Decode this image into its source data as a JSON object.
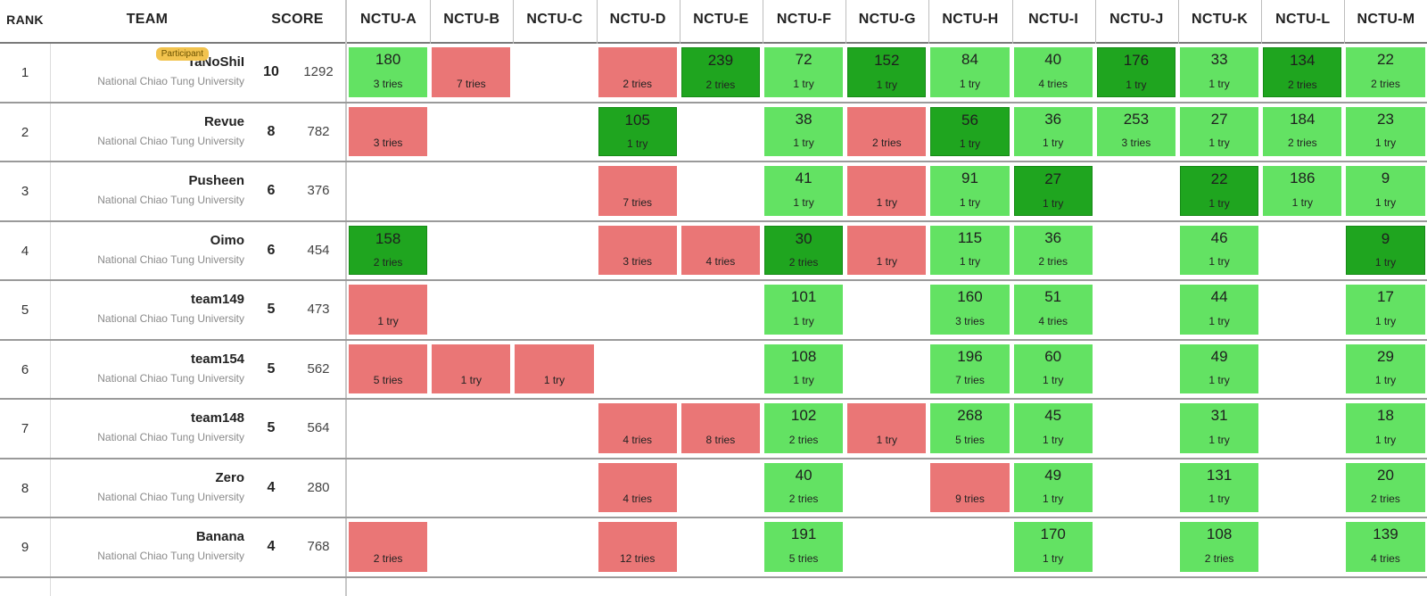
{
  "columns": {
    "rank": "RANK",
    "team": "TEAM",
    "score": "SCORE",
    "problems": [
      "NCTU-A",
      "NCTU-B",
      "NCTU-C",
      "NCTU-D",
      "NCTU-E",
      "NCTU-F",
      "NCTU-G",
      "NCTU-H",
      "NCTU-I",
      "NCTU-J",
      "NCTU-K",
      "NCTU-L",
      "NCTU-M"
    ]
  },
  "colors": {
    "solved": "#63e263",
    "first_solve": "#1fa51f",
    "failed": "#ea7676",
    "badge": "#f2c34e"
  },
  "rows": [
    {
      "rank": "1",
      "name": "TaNoShiI",
      "affiliation": "National Chiao Tung University",
      "badge": "Participant",
      "solved": "10",
      "penalty": "1292",
      "cells": [
        {
          "s": "solved",
          "time": "180",
          "tries": "3 tries"
        },
        {
          "s": "failed",
          "time": "",
          "tries": "7 tries"
        },
        {
          "s": "none",
          "time": "",
          "tries": ""
        },
        {
          "s": "failed",
          "time": "",
          "tries": "2 tries"
        },
        {
          "s": "first",
          "time": "239",
          "tries": "2 tries"
        },
        {
          "s": "solved",
          "time": "72",
          "tries": "1 try"
        },
        {
          "s": "first",
          "time": "152",
          "tries": "1 try"
        },
        {
          "s": "solved",
          "time": "84",
          "tries": "1 try"
        },
        {
          "s": "solved",
          "time": "40",
          "tries": "4 tries"
        },
        {
          "s": "first",
          "time": "176",
          "tries": "1 try"
        },
        {
          "s": "solved",
          "time": "33",
          "tries": "1 try"
        },
        {
          "s": "first",
          "time": "134",
          "tries": "2 tries"
        },
        {
          "s": "solved",
          "time": "22",
          "tries": "2 tries"
        }
      ]
    },
    {
      "rank": "2",
      "name": "Revue",
      "affiliation": "National Chiao Tung University",
      "badge": "",
      "solved": "8",
      "penalty": "782",
      "cells": [
        {
          "s": "failed",
          "time": "",
          "tries": "3 tries"
        },
        {
          "s": "none",
          "time": "",
          "tries": ""
        },
        {
          "s": "none",
          "time": "",
          "tries": ""
        },
        {
          "s": "first",
          "time": "105",
          "tries": "1 try"
        },
        {
          "s": "none",
          "time": "",
          "tries": ""
        },
        {
          "s": "solved",
          "time": "38",
          "tries": "1 try"
        },
        {
          "s": "failed",
          "time": "",
          "tries": "2 tries"
        },
        {
          "s": "first",
          "time": "56",
          "tries": "1 try"
        },
        {
          "s": "solved",
          "time": "36",
          "tries": "1 try"
        },
        {
          "s": "solved",
          "time": "253",
          "tries": "3 tries"
        },
        {
          "s": "solved",
          "time": "27",
          "tries": "1 try"
        },
        {
          "s": "solved",
          "time": "184",
          "tries": "2 tries"
        },
        {
          "s": "solved",
          "time": "23",
          "tries": "1 try"
        }
      ]
    },
    {
      "rank": "3",
      "name": "Pusheen",
      "affiliation": "National Chiao Tung University",
      "badge": "",
      "solved": "6",
      "penalty": "376",
      "cells": [
        {
          "s": "none",
          "time": "",
          "tries": ""
        },
        {
          "s": "none",
          "time": "",
          "tries": ""
        },
        {
          "s": "none",
          "time": "",
          "tries": ""
        },
        {
          "s": "failed",
          "time": "",
          "tries": "7 tries"
        },
        {
          "s": "none",
          "time": "",
          "tries": ""
        },
        {
          "s": "solved",
          "time": "41",
          "tries": "1 try"
        },
        {
          "s": "failed",
          "time": "",
          "tries": "1 try"
        },
        {
          "s": "solved",
          "time": "91",
          "tries": "1 try"
        },
        {
          "s": "first",
          "time": "27",
          "tries": "1 try"
        },
        {
          "s": "none",
          "time": "",
          "tries": ""
        },
        {
          "s": "first",
          "time": "22",
          "tries": "1 try"
        },
        {
          "s": "solved",
          "time": "186",
          "tries": "1 try"
        },
        {
          "s": "solved",
          "time": "9",
          "tries": "1 try"
        }
      ]
    },
    {
      "rank": "4",
      "name": "Oimo",
      "affiliation": "National Chiao Tung University",
      "badge": "",
      "solved": "6",
      "penalty": "454",
      "cells": [
        {
          "s": "first",
          "time": "158",
          "tries": "2 tries"
        },
        {
          "s": "none",
          "time": "",
          "tries": ""
        },
        {
          "s": "none",
          "time": "",
          "tries": ""
        },
        {
          "s": "failed",
          "time": "",
          "tries": "3 tries"
        },
        {
          "s": "failed",
          "time": "",
          "tries": "4 tries"
        },
        {
          "s": "first",
          "time": "30",
          "tries": "2 tries"
        },
        {
          "s": "failed",
          "time": "",
          "tries": "1 try"
        },
        {
          "s": "solved",
          "time": "115",
          "tries": "1 try"
        },
        {
          "s": "solved",
          "time": "36",
          "tries": "2 tries"
        },
        {
          "s": "none",
          "time": "",
          "tries": ""
        },
        {
          "s": "solved",
          "time": "46",
          "tries": "1 try"
        },
        {
          "s": "none",
          "time": "",
          "tries": ""
        },
        {
          "s": "first",
          "time": "9",
          "tries": "1 try"
        }
      ]
    },
    {
      "rank": "5",
      "name": "team149",
      "affiliation": "National Chiao Tung University",
      "badge": "",
      "solved": "5",
      "penalty": "473",
      "cells": [
        {
          "s": "failed",
          "time": "",
          "tries": "1 try"
        },
        {
          "s": "none",
          "time": "",
          "tries": ""
        },
        {
          "s": "none",
          "time": "",
          "tries": ""
        },
        {
          "s": "none",
          "time": "",
          "tries": ""
        },
        {
          "s": "none",
          "time": "",
          "tries": ""
        },
        {
          "s": "solved",
          "time": "101",
          "tries": "1 try"
        },
        {
          "s": "none",
          "time": "",
          "tries": ""
        },
        {
          "s": "solved",
          "time": "160",
          "tries": "3 tries"
        },
        {
          "s": "solved",
          "time": "51",
          "tries": "4 tries"
        },
        {
          "s": "none",
          "time": "",
          "tries": ""
        },
        {
          "s": "solved",
          "time": "44",
          "tries": "1 try"
        },
        {
          "s": "none",
          "time": "",
          "tries": ""
        },
        {
          "s": "solved",
          "time": "17",
          "tries": "1 try"
        }
      ]
    },
    {
      "rank": "6",
      "name": "team154",
      "affiliation": "National Chiao Tung University",
      "badge": "",
      "solved": "5",
      "penalty": "562",
      "cells": [
        {
          "s": "failed",
          "time": "",
          "tries": "5 tries"
        },
        {
          "s": "failed",
          "time": "",
          "tries": "1 try"
        },
        {
          "s": "failed",
          "time": "",
          "tries": "1 try"
        },
        {
          "s": "none",
          "time": "",
          "tries": ""
        },
        {
          "s": "none",
          "time": "",
          "tries": ""
        },
        {
          "s": "solved",
          "time": "108",
          "tries": "1 try"
        },
        {
          "s": "none",
          "time": "",
          "tries": ""
        },
        {
          "s": "solved",
          "time": "196",
          "tries": "7 tries"
        },
        {
          "s": "solved",
          "time": "60",
          "tries": "1 try"
        },
        {
          "s": "none",
          "time": "",
          "tries": ""
        },
        {
          "s": "solved",
          "time": "49",
          "tries": "1 try"
        },
        {
          "s": "none",
          "time": "",
          "tries": ""
        },
        {
          "s": "solved",
          "time": "29",
          "tries": "1 try"
        }
      ]
    },
    {
      "rank": "7",
      "name": "team148",
      "affiliation": "National Chiao Tung University",
      "badge": "",
      "solved": "5",
      "penalty": "564",
      "cells": [
        {
          "s": "none",
          "time": "",
          "tries": ""
        },
        {
          "s": "none",
          "time": "",
          "tries": ""
        },
        {
          "s": "none",
          "time": "",
          "tries": ""
        },
        {
          "s": "failed",
          "time": "",
          "tries": "4 tries"
        },
        {
          "s": "failed",
          "time": "",
          "tries": "8 tries"
        },
        {
          "s": "solved",
          "time": "102",
          "tries": "2 tries"
        },
        {
          "s": "failed",
          "time": "",
          "tries": "1 try"
        },
        {
          "s": "solved",
          "time": "268",
          "tries": "5 tries"
        },
        {
          "s": "solved",
          "time": "45",
          "tries": "1 try"
        },
        {
          "s": "none",
          "time": "",
          "tries": ""
        },
        {
          "s": "solved",
          "time": "31",
          "tries": "1 try"
        },
        {
          "s": "none",
          "time": "",
          "tries": ""
        },
        {
          "s": "solved",
          "time": "18",
          "tries": "1 try"
        }
      ]
    },
    {
      "rank": "8",
      "name": "Zero",
      "affiliation": "National Chiao Tung University",
      "badge": "",
      "solved": "4",
      "penalty": "280",
      "cells": [
        {
          "s": "none",
          "time": "",
          "tries": ""
        },
        {
          "s": "none",
          "time": "",
          "tries": ""
        },
        {
          "s": "none",
          "time": "",
          "tries": ""
        },
        {
          "s": "failed",
          "time": "",
          "tries": "4 tries"
        },
        {
          "s": "none",
          "time": "",
          "tries": ""
        },
        {
          "s": "solved",
          "time": "40",
          "tries": "2 tries"
        },
        {
          "s": "none",
          "time": "",
          "tries": ""
        },
        {
          "s": "failed",
          "time": "",
          "tries": "9 tries"
        },
        {
          "s": "solved",
          "time": "49",
          "tries": "1 try"
        },
        {
          "s": "none",
          "time": "",
          "tries": ""
        },
        {
          "s": "solved",
          "time": "131",
          "tries": "1 try"
        },
        {
          "s": "none",
          "time": "",
          "tries": ""
        },
        {
          "s": "solved",
          "time": "20",
          "tries": "2 tries"
        }
      ]
    },
    {
      "rank": "9",
      "name": "Banana",
      "affiliation": "National Chiao Tung University",
      "badge": "",
      "solved": "4",
      "penalty": "768",
      "cells": [
        {
          "s": "failed",
          "time": "",
          "tries": "2 tries"
        },
        {
          "s": "none",
          "time": "",
          "tries": ""
        },
        {
          "s": "none",
          "time": "",
          "tries": ""
        },
        {
          "s": "failed",
          "time": "",
          "tries": "12 tries"
        },
        {
          "s": "none",
          "time": "",
          "tries": ""
        },
        {
          "s": "solved",
          "time": "191",
          "tries": "5 tries"
        },
        {
          "s": "none",
          "time": "",
          "tries": ""
        },
        {
          "s": "none",
          "time": "",
          "tries": ""
        },
        {
          "s": "solved",
          "time": "170",
          "tries": "1 try"
        },
        {
          "s": "none",
          "time": "",
          "tries": ""
        },
        {
          "s": "solved",
          "time": "108",
          "tries": "2 tries"
        },
        {
          "s": "none",
          "time": "",
          "tries": ""
        },
        {
          "s": "solved",
          "time": "139",
          "tries": "4 tries"
        }
      ]
    }
  ]
}
